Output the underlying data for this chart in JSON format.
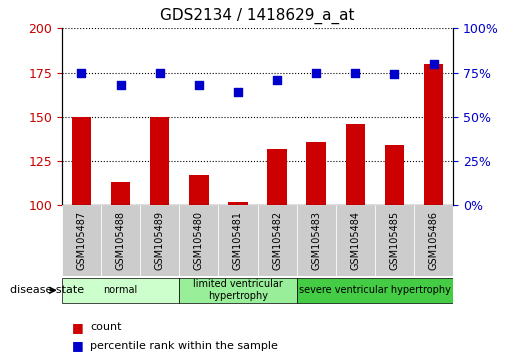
{
  "title": "GDS2134 / 1418629_a_at",
  "samples": [
    "GSM105487",
    "GSM105488",
    "GSM105489",
    "GSM105480",
    "GSM105481",
    "GSM105482",
    "GSM105483",
    "GSM105484",
    "GSM105485",
    "GSM105486"
  ],
  "bar_values": [
    150,
    113,
    150,
    117,
    102,
    132,
    136,
    146,
    134,
    180
  ],
  "percentile_values": [
    175,
    168,
    175,
    168,
    164,
    171,
    175,
    175,
    174,
    180
  ],
  "bar_color": "#cc0000",
  "dot_color": "#0000cc",
  "ylim_left": [
    100,
    200
  ],
  "ylim_right": [
    0,
    100
  ],
  "yticks_left": [
    100,
    125,
    150,
    175,
    200
  ],
  "yticks_right": [
    0,
    25,
    50,
    75,
    100
  ],
  "groups": [
    {
      "label": "normal",
      "start": 0,
      "end": 3,
      "color": "#ccffcc"
    },
    {
      "label": "limited ventricular\nhypertrophy",
      "start": 3,
      "end": 6,
      "color": "#99ee99"
    },
    {
      "label": "severe ventricular hypertrophy",
      "start": 6,
      "end": 10,
      "color": "#44cc44"
    }
  ],
  "disease_state_label": "disease state",
  "legend_count": "count",
  "legend_percentile": "percentile rank within the sample",
  "tick_label_area_color": "#cccccc"
}
